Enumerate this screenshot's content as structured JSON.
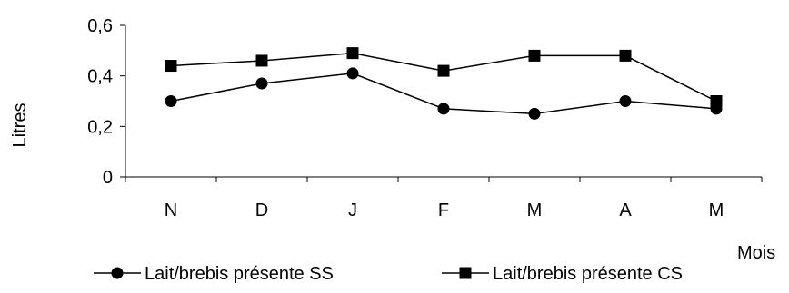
{
  "chart_data": {
    "type": "line",
    "title": "",
    "xlabel": "Mois",
    "ylabel": "Litres",
    "categories": [
      "N",
      "D",
      "J",
      "F",
      "M",
      "A",
      "M"
    ],
    "y_ticks": [
      "0",
      "0,2",
      "0,4",
      "0,6"
    ],
    "ylim": [
      0,
      0.6
    ],
    "grid": false,
    "legend_position": "bottom",
    "series": [
      {
        "name": "Lait/brebis présente SS",
        "marker": "circle",
        "color": "#000000",
        "values": [
          0.3,
          0.37,
          0.41,
          0.27,
          0.25,
          0.3,
          0.27
        ]
      },
      {
        "name": "Lait/brebis présente CS",
        "marker": "square",
        "color": "#000000",
        "values": [
          0.44,
          0.46,
          0.49,
          0.42,
          0.48,
          0.48,
          0.3
        ]
      }
    ]
  }
}
